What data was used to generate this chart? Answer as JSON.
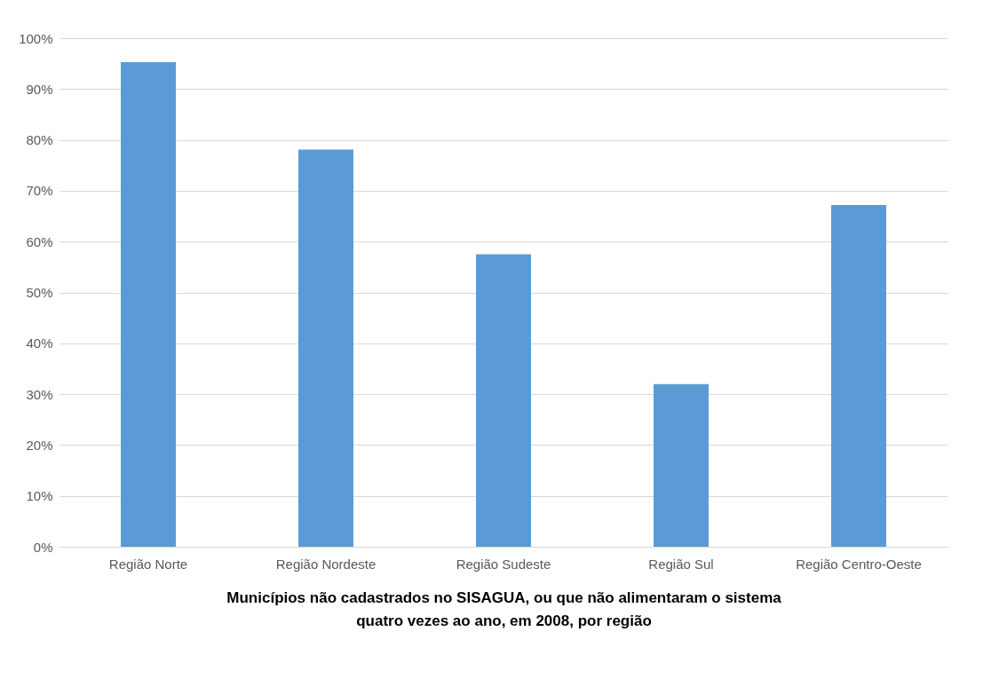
{
  "chart_data": {
    "type": "bar",
    "xlabel": "Municípios não cadastrados no SISAGUA, ou que não alimentaram o sistema quatro vezes ao ano, em 2008, por região",
    "categories": [
      "Região Norte",
      "Região Nordeste",
      "Região Sudeste",
      "Região Sul",
      "Região Centro-Oeste"
    ],
    "values": [
      95.3,
      78.1,
      57.5,
      32,
      67.2
    ],
    "color": "#5b9bd5",
    "ylim": [
      0,
      100
    ],
    "yticks": [
      {
        "value": 0,
        "label": "0%"
      },
      {
        "value": 10,
        "label": "10%"
      },
      {
        "value": 20,
        "label": "20%"
      },
      {
        "value": 30,
        "label": "30%"
      },
      {
        "value": 40,
        "label": "40%"
      },
      {
        "value": 50,
        "label": "50%"
      },
      {
        "value": 60,
        "label": "60%"
      },
      {
        "value": 70,
        "label": "70%"
      },
      {
        "value": 80,
        "label": "80%"
      },
      {
        "value": 90,
        "label": "90%"
      },
      {
        "value": 100,
        "label": "100%"
      }
    ],
    "grid": "y"
  }
}
